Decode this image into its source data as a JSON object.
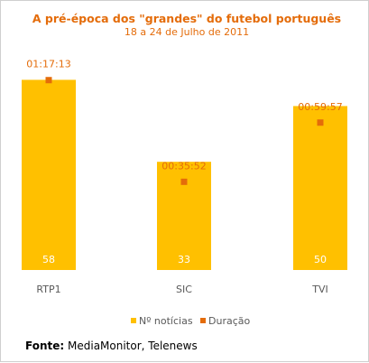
{
  "chart_data": {
    "type": "bar",
    "title": "A pré-época dos \"grandes\" do futebol português",
    "subtitle": "18 a 24 de Julho de 2011",
    "categories": [
      "RTP1",
      "SIC",
      "TVI"
    ],
    "series": [
      {
        "name": "Nº notícias",
        "type": "bar",
        "values": [
          58,
          33,
          50
        ],
        "color": "#FFC000"
      },
      {
        "name": "Duração",
        "type": "marker",
        "values": [
          "01:17:13",
          "00:35:52",
          "00:59:57"
        ],
        "values_seconds": [
          4633,
          2152,
          3597
        ],
        "color": "#E46C0A"
      }
    ],
    "ylim_bars": [
      0,
      65
    ],
    "ylim_duration_seconds": [
      0,
      5200
    ],
    "grid": false,
    "legend_position": "bottom",
    "colors": {
      "title": "#E46C0A",
      "data_label": "#E46C0A",
      "axis_label": "#595959",
      "bar_label": "#ffffff"
    }
  },
  "source": {
    "label": "Fonte:",
    "text": "MediaMonitor, Telenews"
  }
}
